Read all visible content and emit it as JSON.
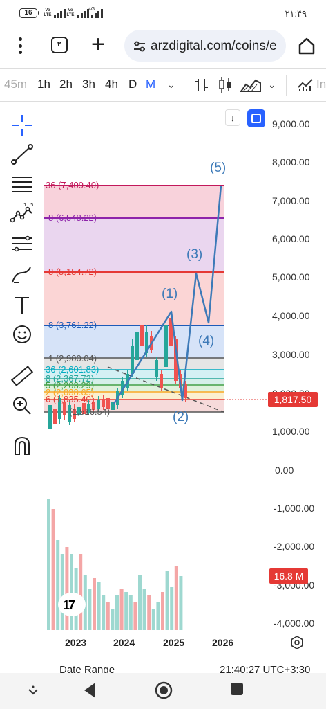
{
  "status_bar": {
    "battery": "16",
    "sim1": "Vo LTE",
    "sim2": "Vo LTE",
    "network": "4G",
    "time": "۲۱:۴۹"
  },
  "browser": {
    "tab_count": "٢",
    "url": "arzdigital.com/coins/e"
  },
  "timeframes": [
    {
      "label": "45m",
      "state": "faded"
    },
    {
      "label": "1h",
      "state": "normal"
    },
    {
      "label": "2h",
      "state": "normal"
    },
    {
      "label": "3h",
      "state": "normal"
    },
    {
      "label": "4h",
      "state": "normal"
    },
    {
      "label": "D",
      "state": "normal"
    },
    {
      "label": "M",
      "state": "active"
    },
    {
      "label": "In",
      "state": "faded"
    }
  ],
  "left_tools": [
    "crosshair-icon",
    "trend-line-icon",
    "horizontal-lines-icon",
    "pattern-icon",
    "fib-retracement-icon",
    "brush-icon",
    "text-tool-icon",
    "emoji-icon",
    "ruler-icon",
    "zoom-in-icon",
    "magnet-icon"
  ],
  "colors": {
    "accent": "#2962ff",
    "up": "#26a69a",
    "down": "#ef5350",
    "last_price": "#e53935",
    "wave": "#3d7ab8"
  },
  "price_axis": [
    "9,000.00",
    "8,000.00",
    "7,000.00",
    "6,000.00",
    "5,000.00",
    "4,000.00",
    "3,000.00",
    "2,000.00",
    "1,000.00",
    "0.00",
    "-1,000.00",
    "-2,000.00",
    "-3,000.00",
    "-4,000.00"
  ],
  "last_price": "1,817.50",
  "volume_tag": "16.8 M",
  "fib_levels": [
    {
      "label": "36 (7,409.40)",
      "color": "#c2185b"
    },
    {
      "label": "8 (6,548.22)",
      "color": "#8e24aa"
    },
    {
      "label": "8 (5,154.72)",
      "color": "#e53935"
    },
    {
      "label": "8 (3,761.22)",
      "color": "#1e5bb8"
    },
    {
      "label": "1 (2,900.04)",
      "color": "#555555"
    },
    {
      "label": "36 (2,601.83)",
      "color": "#00acc1"
    },
    {
      "label": "8 (2,367.72)",
      "color": "#26a69a"
    },
    {
      "label": "5 (2,203.29)",
      "color": "#43a047"
    },
    {
      "label": "2 (2,038.65)",
      "color": "#f9a825"
    },
    {
      "label": "6 (1,835.40)",
      "color": "#e53935"
    },
    {
      "label": "(1,516.54)",
      "color": "#555555"
    }
  ],
  "wave_labels": [
    "(1)",
    "(2)",
    "(3)",
    "(4)",
    "(5)"
  ],
  "time_axis": [
    "2023",
    "2024",
    "2025",
    "2026"
  ],
  "footer": {
    "date_range": "Date Range",
    "utc_time": "21:40:27 UTC+3:30"
  }
}
